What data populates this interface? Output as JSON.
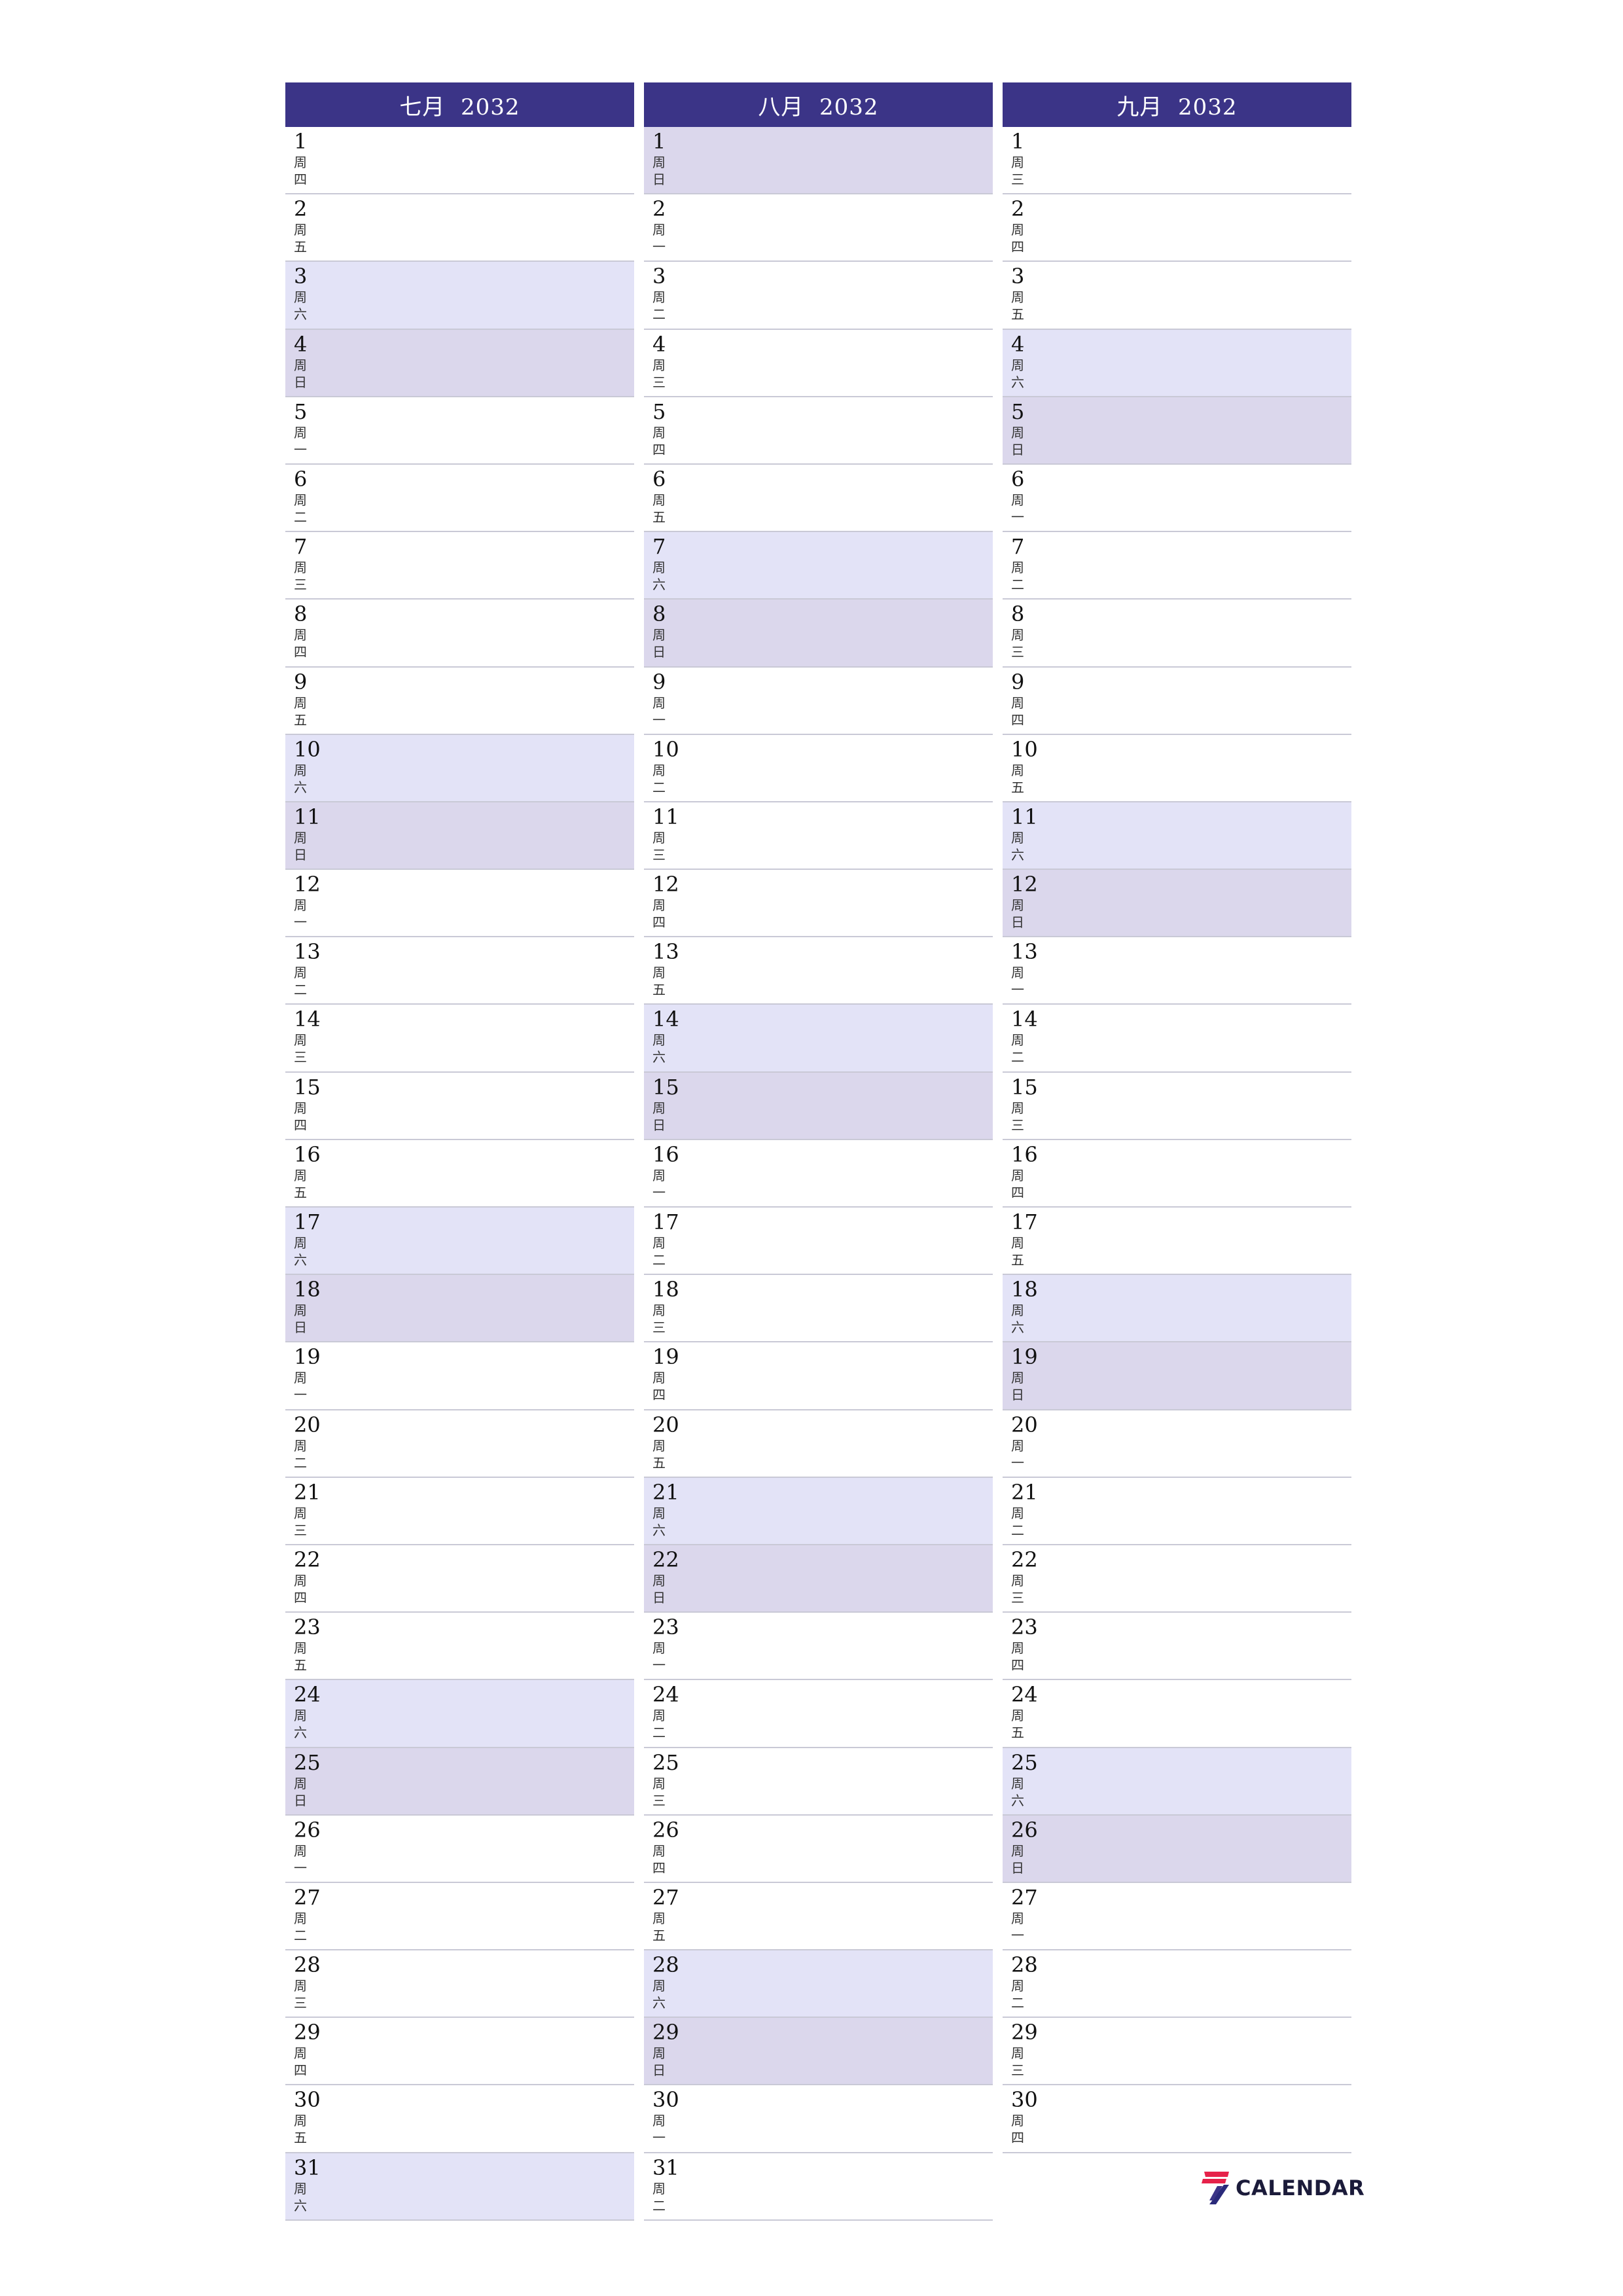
{
  "colors": {
    "header_bg": "#3b3487",
    "saturday_bg": "#e3e3f7",
    "sunday_bg": "#dbd7ec"
  },
  "months": [
    {
      "title": "七月  2032",
      "days": [
        {
          "d": "1",
          "w1": "周",
          "w2": "四",
          "t": ""
        },
        {
          "d": "2",
          "w1": "周",
          "w2": "五",
          "t": ""
        },
        {
          "d": "3",
          "w1": "周",
          "w2": "六",
          "t": "sat"
        },
        {
          "d": "4",
          "w1": "周",
          "w2": "日",
          "t": "sun"
        },
        {
          "d": "5",
          "w1": "周",
          "w2": "一",
          "t": ""
        },
        {
          "d": "6",
          "w1": "周",
          "w2": "二",
          "t": ""
        },
        {
          "d": "7",
          "w1": "周",
          "w2": "三",
          "t": ""
        },
        {
          "d": "8",
          "w1": "周",
          "w2": "四",
          "t": ""
        },
        {
          "d": "9",
          "w1": "周",
          "w2": "五",
          "t": ""
        },
        {
          "d": "10",
          "w1": "周",
          "w2": "六",
          "t": "sat"
        },
        {
          "d": "11",
          "w1": "周",
          "w2": "日",
          "t": "sun"
        },
        {
          "d": "12",
          "w1": "周",
          "w2": "一",
          "t": ""
        },
        {
          "d": "13",
          "w1": "周",
          "w2": "二",
          "t": ""
        },
        {
          "d": "14",
          "w1": "周",
          "w2": "三",
          "t": ""
        },
        {
          "d": "15",
          "w1": "周",
          "w2": "四",
          "t": ""
        },
        {
          "d": "16",
          "w1": "周",
          "w2": "五",
          "t": ""
        },
        {
          "d": "17",
          "w1": "周",
          "w2": "六",
          "t": "sat"
        },
        {
          "d": "18",
          "w1": "周",
          "w2": "日",
          "t": "sun"
        },
        {
          "d": "19",
          "w1": "周",
          "w2": "一",
          "t": ""
        },
        {
          "d": "20",
          "w1": "周",
          "w2": "二",
          "t": ""
        },
        {
          "d": "21",
          "w1": "周",
          "w2": "三",
          "t": ""
        },
        {
          "d": "22",
          "w1": "周",
          "w2": "四",
          "t": ""
        },
        {
          "d": "23",
          "w1": "周",
          "w2": "五",
          "t": ""
        },
        {
          "d": "24",
          "w1": "周",
          "w2": "六",
          "t": "sat"
        },
        {
          "d": "25",
          "w1": "周",
          "w2": "日",
          "t": "sun"
        },
        {
          "d": "26",
          "w1": "周",
          "w2": "一",
          "t": ""
        },
        {
          "d": "27",
          "w1": "周",
          "w2": "二",
          "t": ""
        },
        {
          "d": "28",
          "w1": "周",
          "w2": "三",
          "t": ""
        },
        {
          "d": "29",
          "w1": "周",
          "w2": "四",
          "t": ""
        },
        {
          "d": "30",
          "w1": "周",
          "w2": "五",
          "t": ""
        },
        {
          "d": "31",
          "w1": "周",
          "w2": "六",
          "t": "sat"
        }
      ]
    },
    {
      "title": "八月  2032",
      "days": [
        {
          "d": "1",
          "w1": "周",
          "w2": "日",
          "t": "sun"
        },
        {
          "d": "2",
          "w1": "周",
          "w2": "一",
          "t": ""
        },
        {
          "d": "3",
          "w1": "周",
          "w2": "二",
          "t": ""
        },
        {
          "d": "4",
          "w1": "周",
          "w2": "三",
          "t": ""
        },
        {
          "d": "5",
          "w1": "周",
          "w2": "四",
          "t": ""
        },
        {
          "d": "6",
          "w1": "周",
          "w2": "五",
          "t": ""
        },
        {
          "d": "7",
          "w1": "周",
          "w2": "六",
          "t": "sat"
        },
        {
          "d": "8",
          "w1": "周",
          "w2": "日",
          "t": "sun"
        },
        {
          "d": "9",
          "w1": "周",
          "w2": "一",
          "t": ""
        },
        {
          "d": "10",
          "w1": "周",
          "w2": "二",
          "t": ""
        },
        {
          "d": "11",
          "w1": "周",
          "w2": "三",
          "t": ""
        },
        {
          "d": "12",
          "w1": "周",
          "w2": "四",
          "t": ""
        },
        {
          "d": "13",
          "w1": "周",
          "w2": "五",
          "t": ""
        },
        {
          "d": "14",
          "w1": "周",
          "w2": "六",
          "t": "sat"
        },
        {
          "d": "15",
          "w1": "周",
          "w2": "日",
          "t": "sun"
        },
        {
          "d": "16",
          "w1": "周",
          "w2": "一",
          "t": ""
        },
        {
          "d": "17",
          "w1": "周",
          "w2": "二",
          "t": ""
        },
        {
          "d": "18",
          "w1": "周",
          "w2": "三",
          "t": ""
        },
        {
          "d": "19",
          "w1": "周",
          "w2": "四",
          "t": ""
        },
        {
          "d": "20",
          "w1": "周",
          "w2": "五",
          "t": ""
        },
        {
          "d": "21",
          "w1": "周",
          "w2": "六",
          "t": "sat"
        },
        {
          "d": "22",
          "w1": "周",
          "w2": "日",
          "t": "sun"
        },
        {
          "d": "23",
          "w1": "周",
          "w2": "一",
          "t": ""
        },
        {
          "d": "24",
          "w1": "周",
          "w2": "二",
          "t": ""
        },
        {
          "d": "25",
          "w1": "周",
          "w2": "三",
          "t": ""
        },
        {
          "d": "26",
          "w1": "周",
          "w2": "四",
          "t": ""
        },
        {
          "d": "27",
          "w1": "周",
          "w2": "五",
          "t": ""
        },
        {
          "d": "28",
          "w1": "周",
          "w2": "六",
          "t": "sat"
        },
        {
          "d": "29",
          "w1": "周",
          "w2": "日",
          "t": "sun"
        },
        {
          "d": "30",
          "w1": "周",
          "w2": "一",
          "t": ""
        },
        {
          "d": "31",
          "w1": "周",
          "w2": "二",
          "t": ""
        }
      ]
    },
    {
      "title": "九月  2032",
      "days": [
        {
          "d": "1",
          "w1": "周",
          "w2": "三",
          "t": ""
        },
        {
          "d": "2",
          "w1": "周",
          "w2": "四",
          "t": ""
        },
        {
          "d": "3",
          "w1": "周",
          "w2": "五",
          "t": ""
        },
        {
          "d": "4",
          "w1": "周",
          "w2": "六",
          "t": "sat"
        },
        {
          "d": "5",
          "w1": "周",
          "w2": "日",
          "t": "sun"
        },
        {
          "d": "6",
          "w1": "周",
          "w2": "一",
          "t": ""
        },
        {
          "d": "7",
          "w1": "周",
          "w2": "二",
          "t": ""
        },
        {
          "d": "8",
          "w1": "周",
          "w2": "三",
          "t": ""
        },
        {
          "d": "9",
          "w1": "周",
          "w2": "四",
          "t": ""
        },
        {
          "d": "10",
          "w1": "周",
          "w2": "五",
          "t": ""
        },
        {
          "d": "11",
          "w1": "周",
          "w2": "六",
          "t": "sat"
        },
        {
          "d": "12",
          "w1": "周",
          "w2": "日",
          "t": "sun"
        },
        {
          "d": "13",
          "w1": "周",
          "w2": "一",
          "t": ""
        },
        {
          "d": "14",
          "w1": "周",
          "w2": "二",
          "t": ""
        },
        {
          "d": "15",
          "w1": "周",
          "w2": "三",
          "t": ""
        },
        {
          "d": "16",
          "w1": "周",
          "w2": "四",
          "t": ""
        },
        {
          "d": "17",
          "w1": "周",
          "w2": "五",
          "t": ""
        },
        {
          "d": "18",
          "w1": "周",
          "w2": "六",
          "t": "sat"
        },
        {
          "d": "19",
          "w1": "周",
          "w2": "日",
          "t": "sun"
        },
        {
          "d": "20",
          "w1": "周",
          "w2": "一",
          "t": ""
        },
        {
          "d": "21",
          "w1": "周",
          "w2": "二",
          "t": ""
        },
        {
          "d": "22",
          "w1": "周",
          "w2": "三",
          "t": ""
        },
        {
          "d": "23",
          "w1": "周",
          "w2": "四",
          "t": ""
        },
        {
          "d": "24",
          "w1": "周",
          "w2": "五",
          "t": ""
        },
        {
          "d": "25",
          "w1": "周",
          "w2": "六",
          "t": "sat"
        },
        {
          "d": "26",
          "w1": "周",
          "w2": "日",
          "t": "sun"
        },
        {
          "d": "27",
          "w1": "周",
          "w2": "一",
          "t": ""
        },
        {
          "d": "28",
          "w1": "周",
          "w2": "二",
          "t": ""
        },
        {
          "d": "29",
          "w1": "周",
          "w2": "三",
          "t": ""
        },
        {
          "d": "30",
          "w1": "周",
          "w2": "四",
          "t": ""
        }
      ]
    }
  ],
  "logo": {
    "text": "CALENDAR",
    "icon": "seven-logo-icon"
  }
}
